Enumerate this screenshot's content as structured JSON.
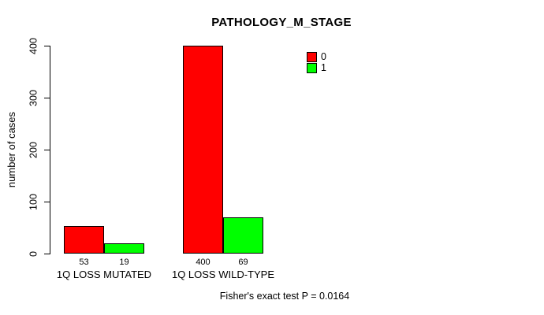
{
  "title": "PATHOLOGY_M_STAGE",
  "caption": "Fisher's exact test P = 0.0164",
  "chart_data": {
    "type": "bar",
    "title": "PATHOLOGY_M_STAGE",
    "xlabel": "",
    "ylabel": "number of cases",
    "categories": [
      "1Q LOSS MUTATED",
      "1Q LOSS WILD-TYPE"
    ],
    "series": [
      {
        "name": "0",
        "color": "#ff0000",
        "values": [
          53,
          400
        ]
      },
      {
        "name": "1",
        "color": "#00ff00",
        "values": [
          19,
          69
        ]
      }
    ],
    "ylim": [
      0,
      400
    ],
    "y_ticks": [
      0,
      100,
      200,
      300,
      400
    ],
    "bar_value_labels": [
      [
        53,
        19
      ],
      [
        400,
        69
      ]
    ],
    "grid": false,
    "legend_position": "top-right",
    "annotation": "Fisher's exact test P = 0.0164"
  }
}
